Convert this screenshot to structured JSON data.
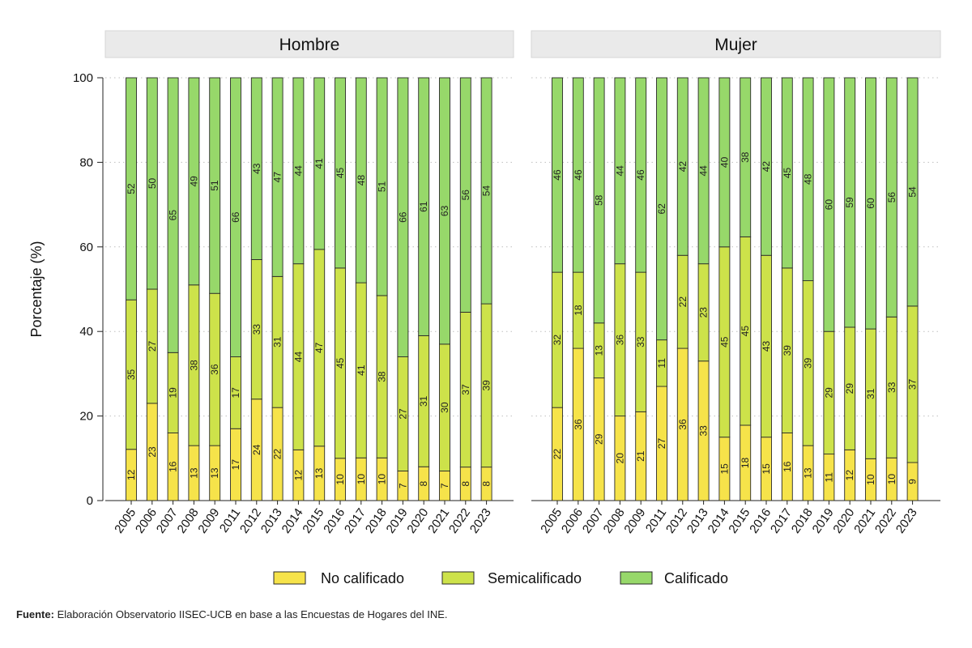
{
  "chart_data": {
    "type": "bar",
    "stacked": true,
    "ylabel": "Porcentaje (%)",
    "ylim": [
      0,
      100
    ],
    "yticks": [
      0,
      20,
      40,
      60,
      80,
      100
    ],
    "categories": [
      "2005",
      "2006",
      "2007",
      "2008",
      "2009",
      "2011",
      "2012",
      "2013",
      "2014",
      "2015",
      "2016",
      "2017",
      "2018",
      "2019",
      "2020",
      "2021",
      "2022",
      "2023"
    ],
    "legend": [
      {
        "name": "No calificado",
        "color": "#f6e34a"
      },
      {
        "name": "Semicalificado",
        "color": "#cde24a"
      },
      {
        "name": "Calificado",
        "color": "#97d86a"
      }
    ],
    "panels": [
      {
        "title": "Hombre",
        "series": [
          {
            "name": "No calificado",
            "values": [
              12,
              23,
              16,
              13,
              13,
              17,
              24,
              22,
              12,
              13,
              10,
              10,
              10,
              7,
              8,
              7,
              8,
              8
            ]
          },
          {
            "name": "Semicalificado",
            "values": [
              35,
              27,
              19,
              38,
              36,
              17,
              33,
              31,
              44,
              47,
              45,
              41,
              38,
              27,
              31,
              30,
              37,
              39
            ]
          },
          {
            "name": "Calificado",
            "values": [
              52,
              50,
              65,
              49,
              51,
              66,
              43,
              47,
              44,
              41,
              45,
              48,
              51,
              66,
              61,
              63,
              56,
              54
            ]
          }
        ]
      },
      {
        "title": "Mujer",
        "series": [
          {
            "name": "No calificado",
            "values": [
              22,
              36,
              29,
              20,
              21,
              27,
              36,
              33,
              15,
              18,
              15,
              16,
              13,
              11,
              12,
              10,
              10,
              9
            ]
          },
          {
            "name": "Semicalificado",
            "values": [
              32,
              18,
              13,
              36,
              33,
              11,
              22,
              23,
              45,
              45,
              43,
              39,
              39,
              29,
              29,
              31,
              33,
              37
            ]
          },
          {
            "name": "Calificado",
            "values": [
              46,
              46,
              58,
              44,
              46,
              62,
              42,
              44,
              40,
              38,
              42,
              45,
              48,
              60,
              59,
              60,
              56,
              54
            ]
          }
        ]
      }
    ]
  },
  "footer": {
    "source_label": "Fuente:",
    "source_text": " Elaboración Observatorio IISEC-UCB en base a las Encuestas de Hogares del INE."
  }
}
